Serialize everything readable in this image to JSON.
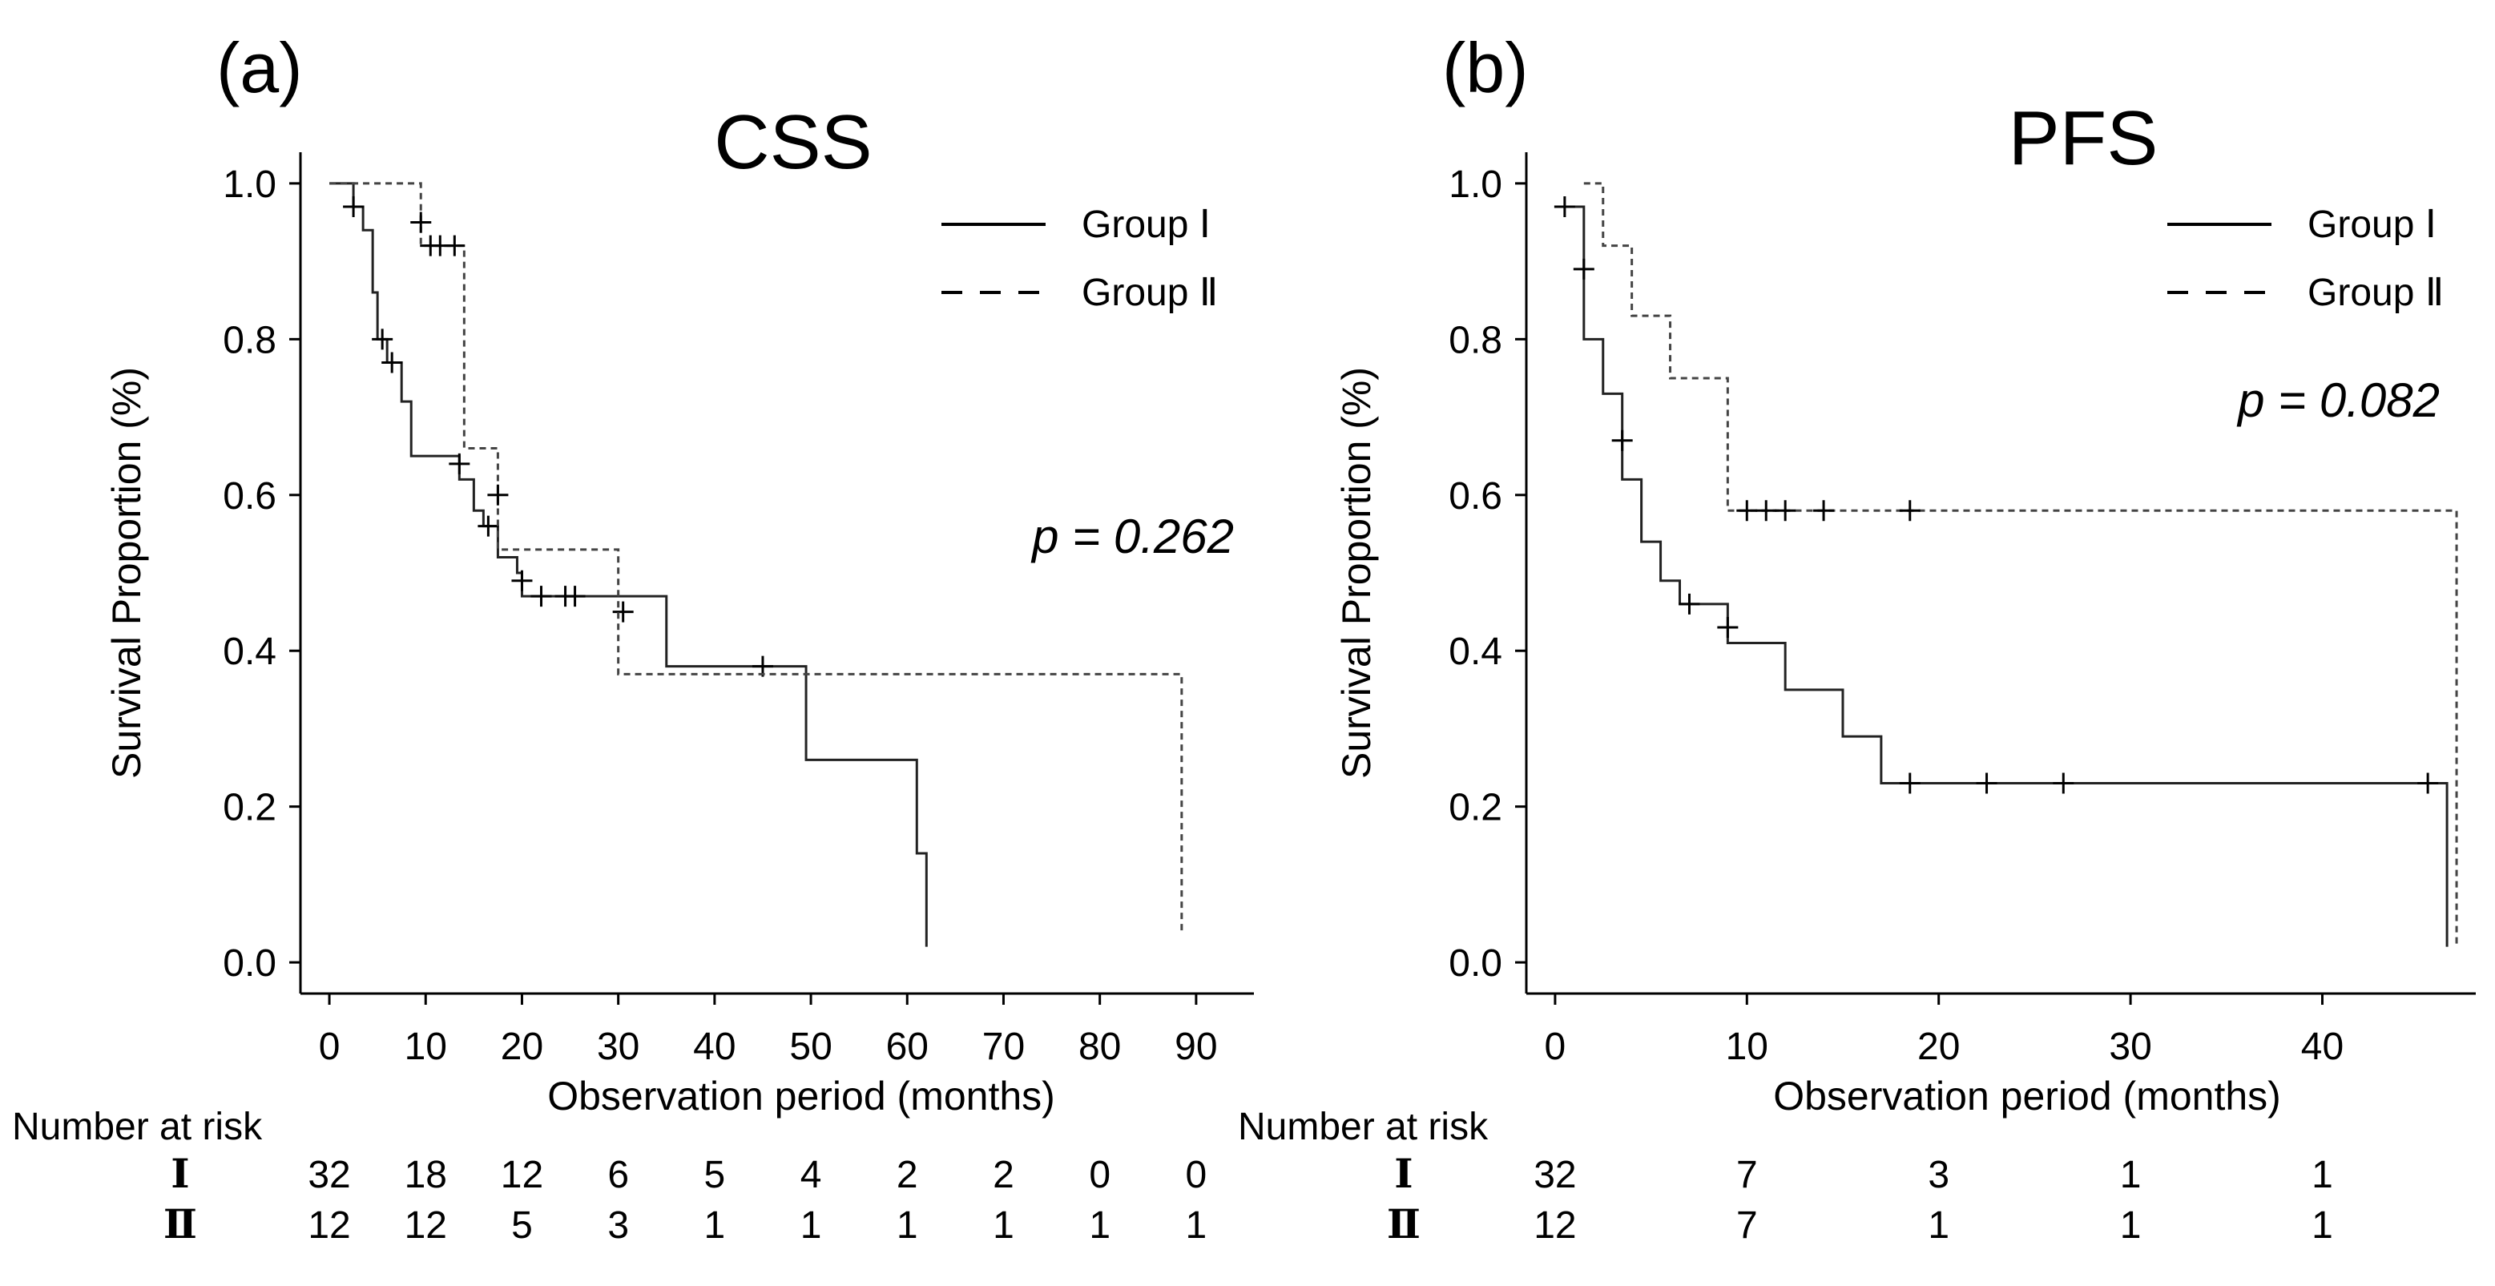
{
  "chart_data": [
    {
      "type": "line",
      "panel_label": "(a)",
      "title": "CSS",
      "xlabel": "Observation period (months)",
      "ylabel": "Survival Proportion (%)",
      "xlim": [
        -3,
        96
      ],
      "ylim": [
        -0.04,
        1.04
      ],
      "x_ticks": [
        0,
        10,
        20,
        30,
        40,
        50,
        60,
        70,
        80,
        90
      ],
      "y_ticks": [
        0.0,
        0.2,
        0.4,
        0.6,
        0.8,
        1.0
      ],
      "x_tick_labels": [
        "0",
        "10",
        "20",
        "30",
        "40",
        "50",
        "60",
        "70",
        "80",
        "90"
      ],
      "y_tick_labels": [
        "0.0",
        "0.2",
        "0.4",
        "0.6",
        "0.8",
        "1.0"
      ],
      "grid": false,
      "legend_position": "top-right",
      "annotation": "p = 0.262",
      "series": [
        {
          "name": "Group Ⅰ",
          "line_style": "solid",
          "steps": [
            [
              0,
              1.0
            ],
            [
              2.5,
              0.97
            ],
            [
              3.5,
              0.94
            ],
            [
              4.5,
              0.86
            ],
            [
              5.0,
              0.8
            ],
            [
              6.0,
              0.77
            ],
            [
              7.5,
              0.72
            ],
            [
              8.5,
              0.65
            ],
            [
              13.5,
              0.62
            ],
            [
              15.0,
              0.58
            ],
            [
              16.0,
              0.56
            ],
            [
              17.5,
              0.52
            ],
            [
              19.5,
              0.5
            ],
            [
              20.0,
              0.47
            ],
            [
              35.0,
              0.38
            ],
            [
              49.5,
              0.26
            ],
            [
              61.0,
              0.14
            ],
            [
              62.0,
              0.02
            ]
          ],
          "censored": [
            [
              2.5,
              0.97
            ],
            [
              5.5,
              0.8
            ],
            [
              6.5,
              0.77
            ],
            [
              13.5,
              0.64
            ],
            [
              16.5,
              0.56
            ],
            [
              20.0,
              0.49
            ],
            [
              22.0,
              0.47
            ],
            [
              24.5,
              0.47
            ],
            [
              25.5,
              0.47
            ],
            [
              30.5,
              0.45
            ],
            [
              45.0,
              0.38
            ]
          ]
        },
        {
          "name": "Group Ⅱ",
          "line_style": "dashed",
          "steps": [
            [
              0,
              1.0
            ],
            [
              9.5,
              0.92
            ],
            [
              14.0,
              0.66
            ],
            [
              17.5,
              0.53
            ],
            [
              30.0,
              0.37
            ],
            [
              88.5,
              0.04
            ]
          ],
          "censored": [
            [
              9.5,
              0.95
            ],
            [
              10.5,
              0.92
            ],
            [
              11.5,
              0.92
            ],
            [
              13.0,
              0.92
            ],
            [
              17.5,
              0.6
            ]
          ]
        }
      ],
      "risk_table": {
        "title": "Number at risk",
        "groups": [
          "Ⅰ",
          "Ⅱ"
        ],
        "x": [
          0,
          10,
          20,
          30,
          40,
          50,
          60,
          70,
          80,
          90
        ],
        "rows": [
          [
            "32",
            "18",
            "12",
            "6",
            "5",
            "4",
            "2",
            "2",
            "0",
            "0"
          ],
          [
            "12",
            "12",
            "5",
            "3",
            "1",
            "1",
            "1",
            "1",
            "1",
            "1"
          ]
        ]
      }
    },
    {
      "type": "line",
      "panel_label": "(b)",
      "title": "PFS",
      "xlabel": "Observation period (months)",
      "ylabel": "Survival Proportion (%)",
      "xlim": [
        -1.5,
        48
      ],
      "ylim": [
        -0.04,
        1.04
      ],
      "x_ticks": [
        0,
        10,
        20,
        30,
        40
      ],
      "y_ticks": [
        0.0,
        0.2,
        0.4,
        0.6,
        0.8,
        1.0
      ],
      "x_tick_labels": [
        "0",
        "10",
        "20",
        "30",
        "40"
      ],
      "y_tick_labels": [
        "0.0",
        "0.2",
        "0.4",
        "0.6",
        "0.8",
        "1.0"
      ],
      "grid": false,
      "legend_position": "top-right",
      "annotation": "p = 0.082",
      "series": [
        {
          "name": "Group Ⅰ",
          "line_style": "solid",
          "steps": [
            [
              0.5,
              0.97
            ],
            [
              1.5,
              0.8
            ],
            [
              2.5,
              0.73
            ],
            [
              3.5,
              0.62
            ],
            [
              4.5,
              0.54
            ],
            [
              5.5,
              0.49
            ],
            [
              6.5,
              0.46
            ],
            [
              9.0,
              0.41
            ],
            [
              12.0,
              0.35
            ],
            [
              15.0,
              0.29
            ],
            [
              17.0,
              0.23
            ],
            [
              46.5,
              0.02
            ]
          ],
          "censored": [
            [
              0.5,
              0.97
            ],
            [
              1.5,
              0.89
            ],
            [
              3.5,
              0.67
            ],
            [
              7.0,
              0.46
            ],
            [
              9.0,
              0.43
            ],
            [
              18.5,
              0.23
            ],
            [
              22.5,
              0.23
            ],
            [
              26.5,
              0.23
            ],
            [
              45.5,
              0.23
            ]
          ]
        },
        {
          "name": "Group Ⅱ",
          "line_style": "dashed",
          "steps": [
            [
              1.5,
              1.0
            ],
            [
              2.5,
              0.92
            ],
            [
              4.0,
              0.83
            ],
            [
              6.0,
              0.75
            ],
            [
              9.0,
              0.58
            ],
            [
              47.0,
              0.02
            ]
          ],
          "censored": [
            [
              10.0,
              0.58
            ],
            [
              11.0,
              0.58
            ],
            [
              12.0,
              0.58
            ],
            [
              14.0,
              0.58
            ],
            [
              18.5,
              0.58
            ]
          ]
        }
      ],
      "risk_table": {
        "title": "Number at risk",
        "groups": [
          "Ⅰ",
          "Ⅱ"
        ],
        "x": [
          0,
          10,
          20,
          30,
          40
        ],
        "rows": [
          [
            "32",
            "7",
            "3",
            "1",
            "1"
          ],
          [
            "12",
            "7",
            "1",
            "1",
            "1"
          ]
        ]
      }
    }
  ]
}
